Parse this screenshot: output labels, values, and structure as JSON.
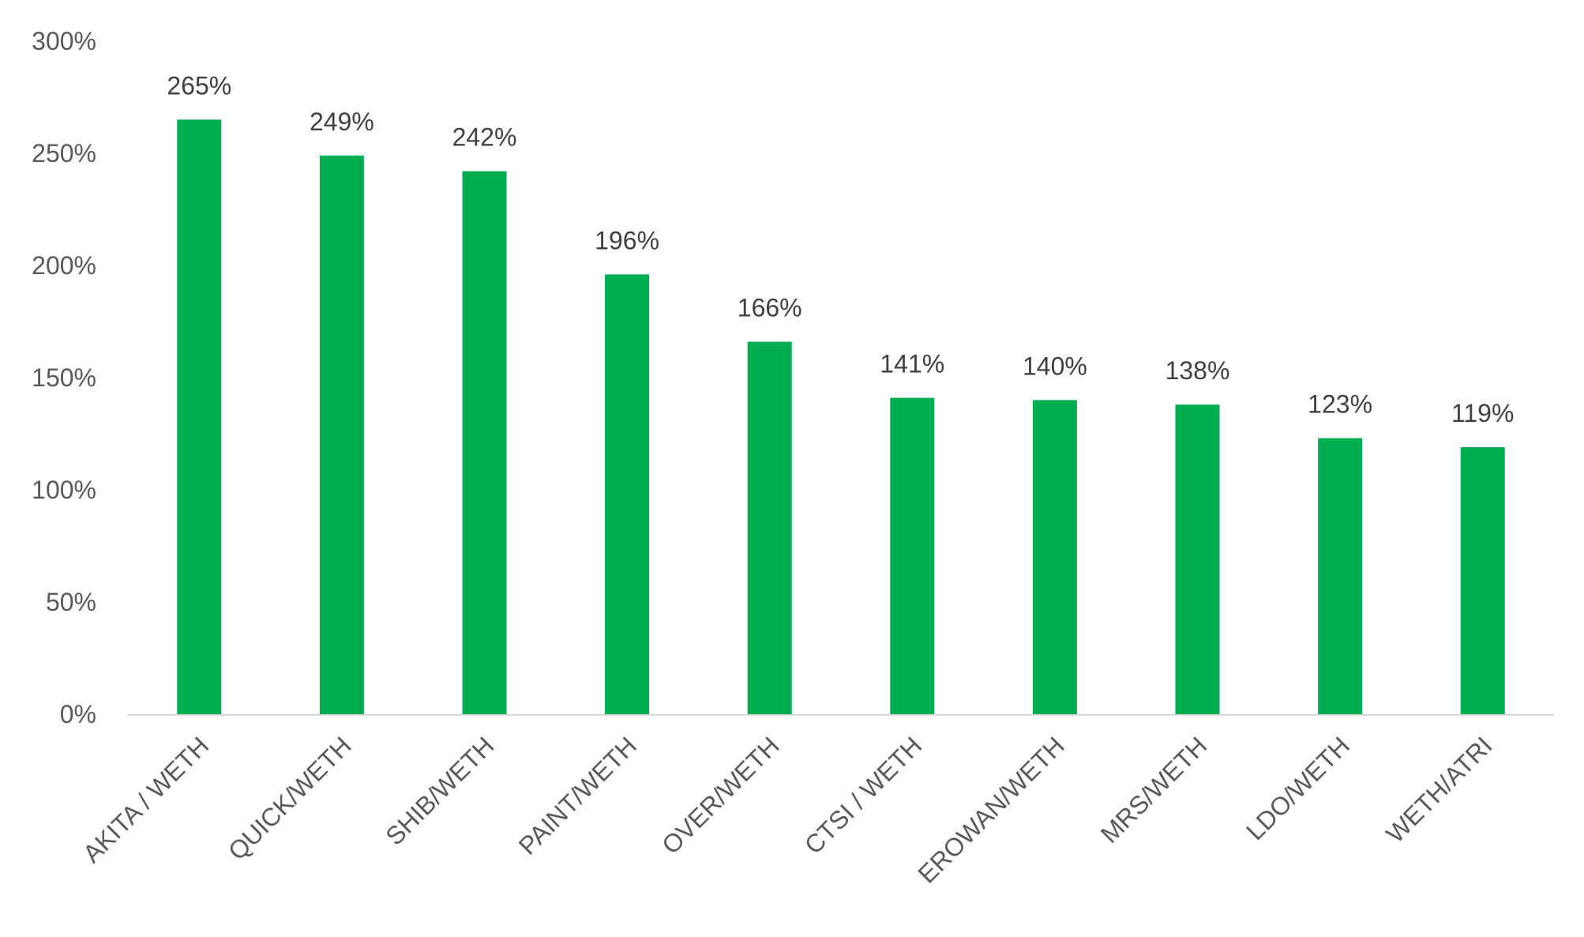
{
  "chart_data": {
    "type": "bar",
    "categories": [
      "AKITA / WETH",
      "QUICK/WETH",
      "SHIB/WETH",
      "PAINT/WETH",
      "OVER/WETH",
      "CTSI / WETH",
      "EROWAN/WETH",
      "MRS/WETH",
      "LDO/WETH",
      "WETH/ATRI"
    ],
    "values": [
      265,
      249,
      242,
      196,
      166,
      141,
      140,
      138,
      123,
      119
    ],
    "data_labels": [
      "265%",
      "249%",
      "242%",
      "196%",
      "166%",
      "141%",
      "140%",
      "138%",
      "123%",
      "119%"
    ],
    "y_ticks": [
      "0%",
      "50%",
      "100%",
      "150%",
      "200%",
      "250%",
      "300%"
    ],
    "ylim": [
      0,
      300
    ],
    "y_unit": "%",
    "grid": false,
    "legend": false,
    "bar_color": "#00ad50",
    "axis_color": "#d9d9d9"
  }
}
